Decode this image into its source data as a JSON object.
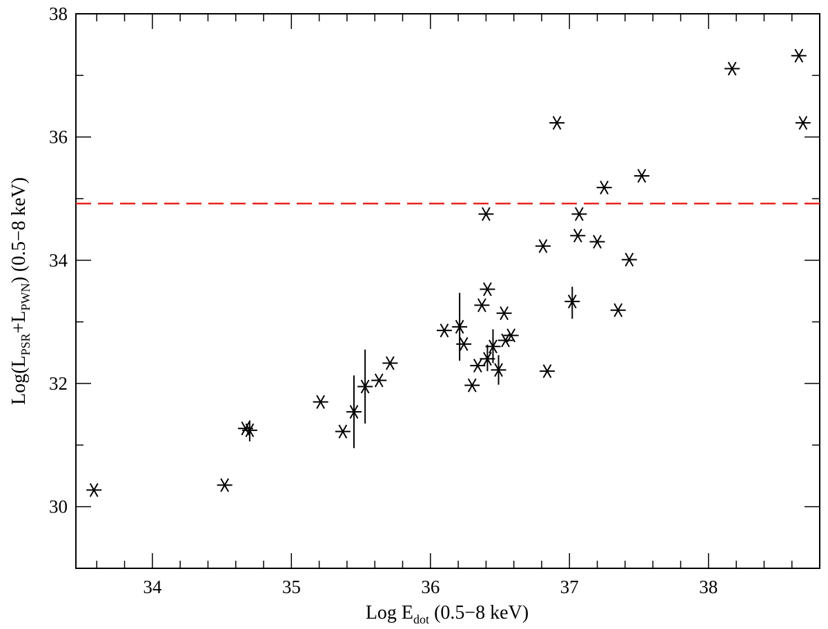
{
  "chart_data": {
    "type": "scatter",
    "title": "",
    "xlabel": {
      "main": "Log E",
      "sub": "dot",
      "rest": " (0.5−8 keV)"
    },
    "ylabel": {
      "pre": "Log(L",
      "sub1": "PSR",
      "mid": "+L",
      "sub2": "PWN",
      "post": ")  (0.5−8 keV)"
    },
    "xlim": [
      33.45,
      38.8
    ],
    "ylim": [
      29,
      38
    ],
    "xticks": [
      34,
      35,
      36,
      37,
      38
    ],
    "yticks": [
      30,
      32,
      34,
      36,
      38
    ],
    "grid": false,
    "marker": "asterisk",
    "marker_color": "#000000",
    "threshold_line": {
      "y": 34.92,
      "style": "dashed",
      "color": "#e8231f"
    },
    "points": [
      {
        "x": 33.58,
        "y": 30.27
      },
      {
        "x": 34.52,
        "y": 30.35
      },
      {
        "x": 34.67,
        "y": 31.27
      },
      {
        "x": 34.7,
        "y": 31.24,
        "yerr": [
          31.06,
          31.4
        ]
      },
      {
        "x": 35.21,
        "y": 31.7
      },
      {
        "x": 35.37,
        "y": 31.22
      },
      {
        "x": 35.45,
        "y": 31.54,
        "yerr": [
          30.95,
          32.13
        ]
      },
      {
        "x": 35.53,
        "y": 31.95,
        "yerr": [
          31.35,
          32.55
        ]
      },
      {
        "x": 35.63,
        "y": 32.05
      },
      {
        "x": 35.71,
        "y": 32.33
      },
      {
        "x": 36.1,
        "y": 32.86
      },
      {
        "x": 36.21,
        "y": 32.92,
        "yerr": [
          32.37,
          33.47
        ]
      },
      {
        "x": 36.24,
        "y": 32.64
      },
      {
        "x": 36.3,
        "y": 31.97
      },
      {
        "x": 36.34,
        "y": 32.29
      },
      {
        "x": 36.37,
        "y": 33.27
      },
      {
        "x": 36.41,
        "y": 33.53
      },
      {
        "x": 36.41,
        "y": 32.4,
        "yerr": [
          32.2,
          32.63
        ]
      },
      {
        "x": 36.45,
        "y": 32.6,
        "yerr": [
          32.33,
          32.88
        ]
      },
      {
        "x": 36.49,
        "y": 32.22,
        "yerr": [
          31.98,
          32.46
        ]
      },
      {
        "x": 36.53,
        "y": 33.14
      },
      {
        "x": 36.54,
        "y": 32.7
      },
      {
        "x": 36.58,
        "y": 32.78
      },
      {
        "x": 36.4,
        "y": 34.75
      },
      {
        "x": 36.81,
        "y": 34.23
      },
      {
        "x": 36.84,
        "y": 32.2
      },
      {
        "x": 36.91,
        "y": 36.23
      },
      {
        "x": 37.02,
        "y": 33.33,
        "yerr": [
          33.05,
          33.57
        ]
      },
      {
        "x": 37.06,
        "y": 34.4
      },
      {
        "x": 37.07,
        "y": 34.75
      },
      {
        "x": 37.2,
        "y": 34.3
      },
      {
        "x": 37.25,
        "y": 35.18
      },
      {
        "x": 37.35,
        "y": 33.19
      },
      {
        "x": 37.43,
        "y": 34.01
      },
      {
        "x": 37.52,
        "y": 35.37
      },
      {
        "x": 38.17,
        "y": 37.11
      },
      {
        "x": 38.65,
        "y": 37.32
      },
      {
        "x": 38.68,
        "y": 36.23
      }
    ]
  }
}
